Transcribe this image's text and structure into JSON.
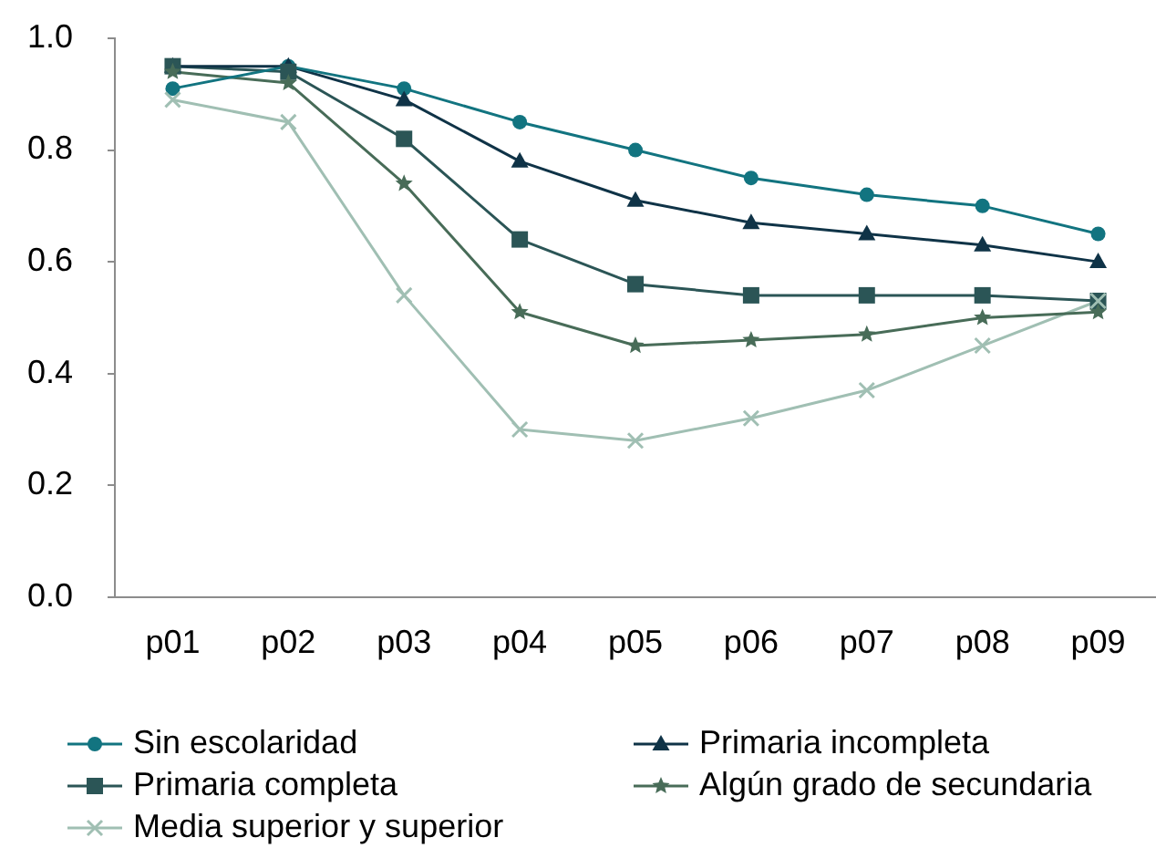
{
  "chart_data": {
    "type": "line",
    "categories": [
      "p01",
      "p02",
      "p03",
      "p04",
      "p05",
      "p06",
      "p07",
      "p08",
      "p09"
    ],
    "ylim": [
      0,
      1
    ],
    "yticks": [
      {
        "value": 0,
        "label": "0.0"
      },
      0.2,
      0.4,
      0.6,
      0.8,
      {
        "value": 1,
        "label": "1.0"
      }
    ],
    "legend": "bottom",
    "series": [
      {
        "name": "Sin escolaridad",
        "color": "#127480",
        "marker": "circle",
        "values": [
          0.91,
          0.95,
          0.91,
          0.85,
          0.8,
          0.75,
          0.72,
          0.7,
          0.65
        ]
      },
      {
        "name": "Primaria incompleta",
        "color": "#0f3347",
        "marker": "triangle",
        "values": [
          0.95,
          0.95,
          0.89,
          0.78,
          0.71,
          0.67,
          0.65,
          0.63,
          0.6
        ]
      },
      {
        "name": "Primaria completa",
        "color": "#2b5556",
        "marker": "square",
        "values": [
          0.95,
          0.94,
          0.82,
          0.64,
          0.56,
          0.54,
          0.54,
          0.54,
          0.53
        ]
      },
      {
        "name": "Algún grado de secundaria",
        "color": "#486c58",
        "marker": "star",
        "values": [
          0.94,
          0.92,
          0.74,
          0.51,
          0.45,
          0.46,
          0.47,
          0.5,
          0.51
        ]
      },
      {
        "name": "Media superior y superior",
        "color": "#a0bfb3",
        "marker": "cross",
        "values": [
          0.89,
          0.85,
          0.54,
          0.3,
          0.28,
          0.32,
          0.37,
          0.45,
          0.53
        ]
      }
    ]
  }
}
